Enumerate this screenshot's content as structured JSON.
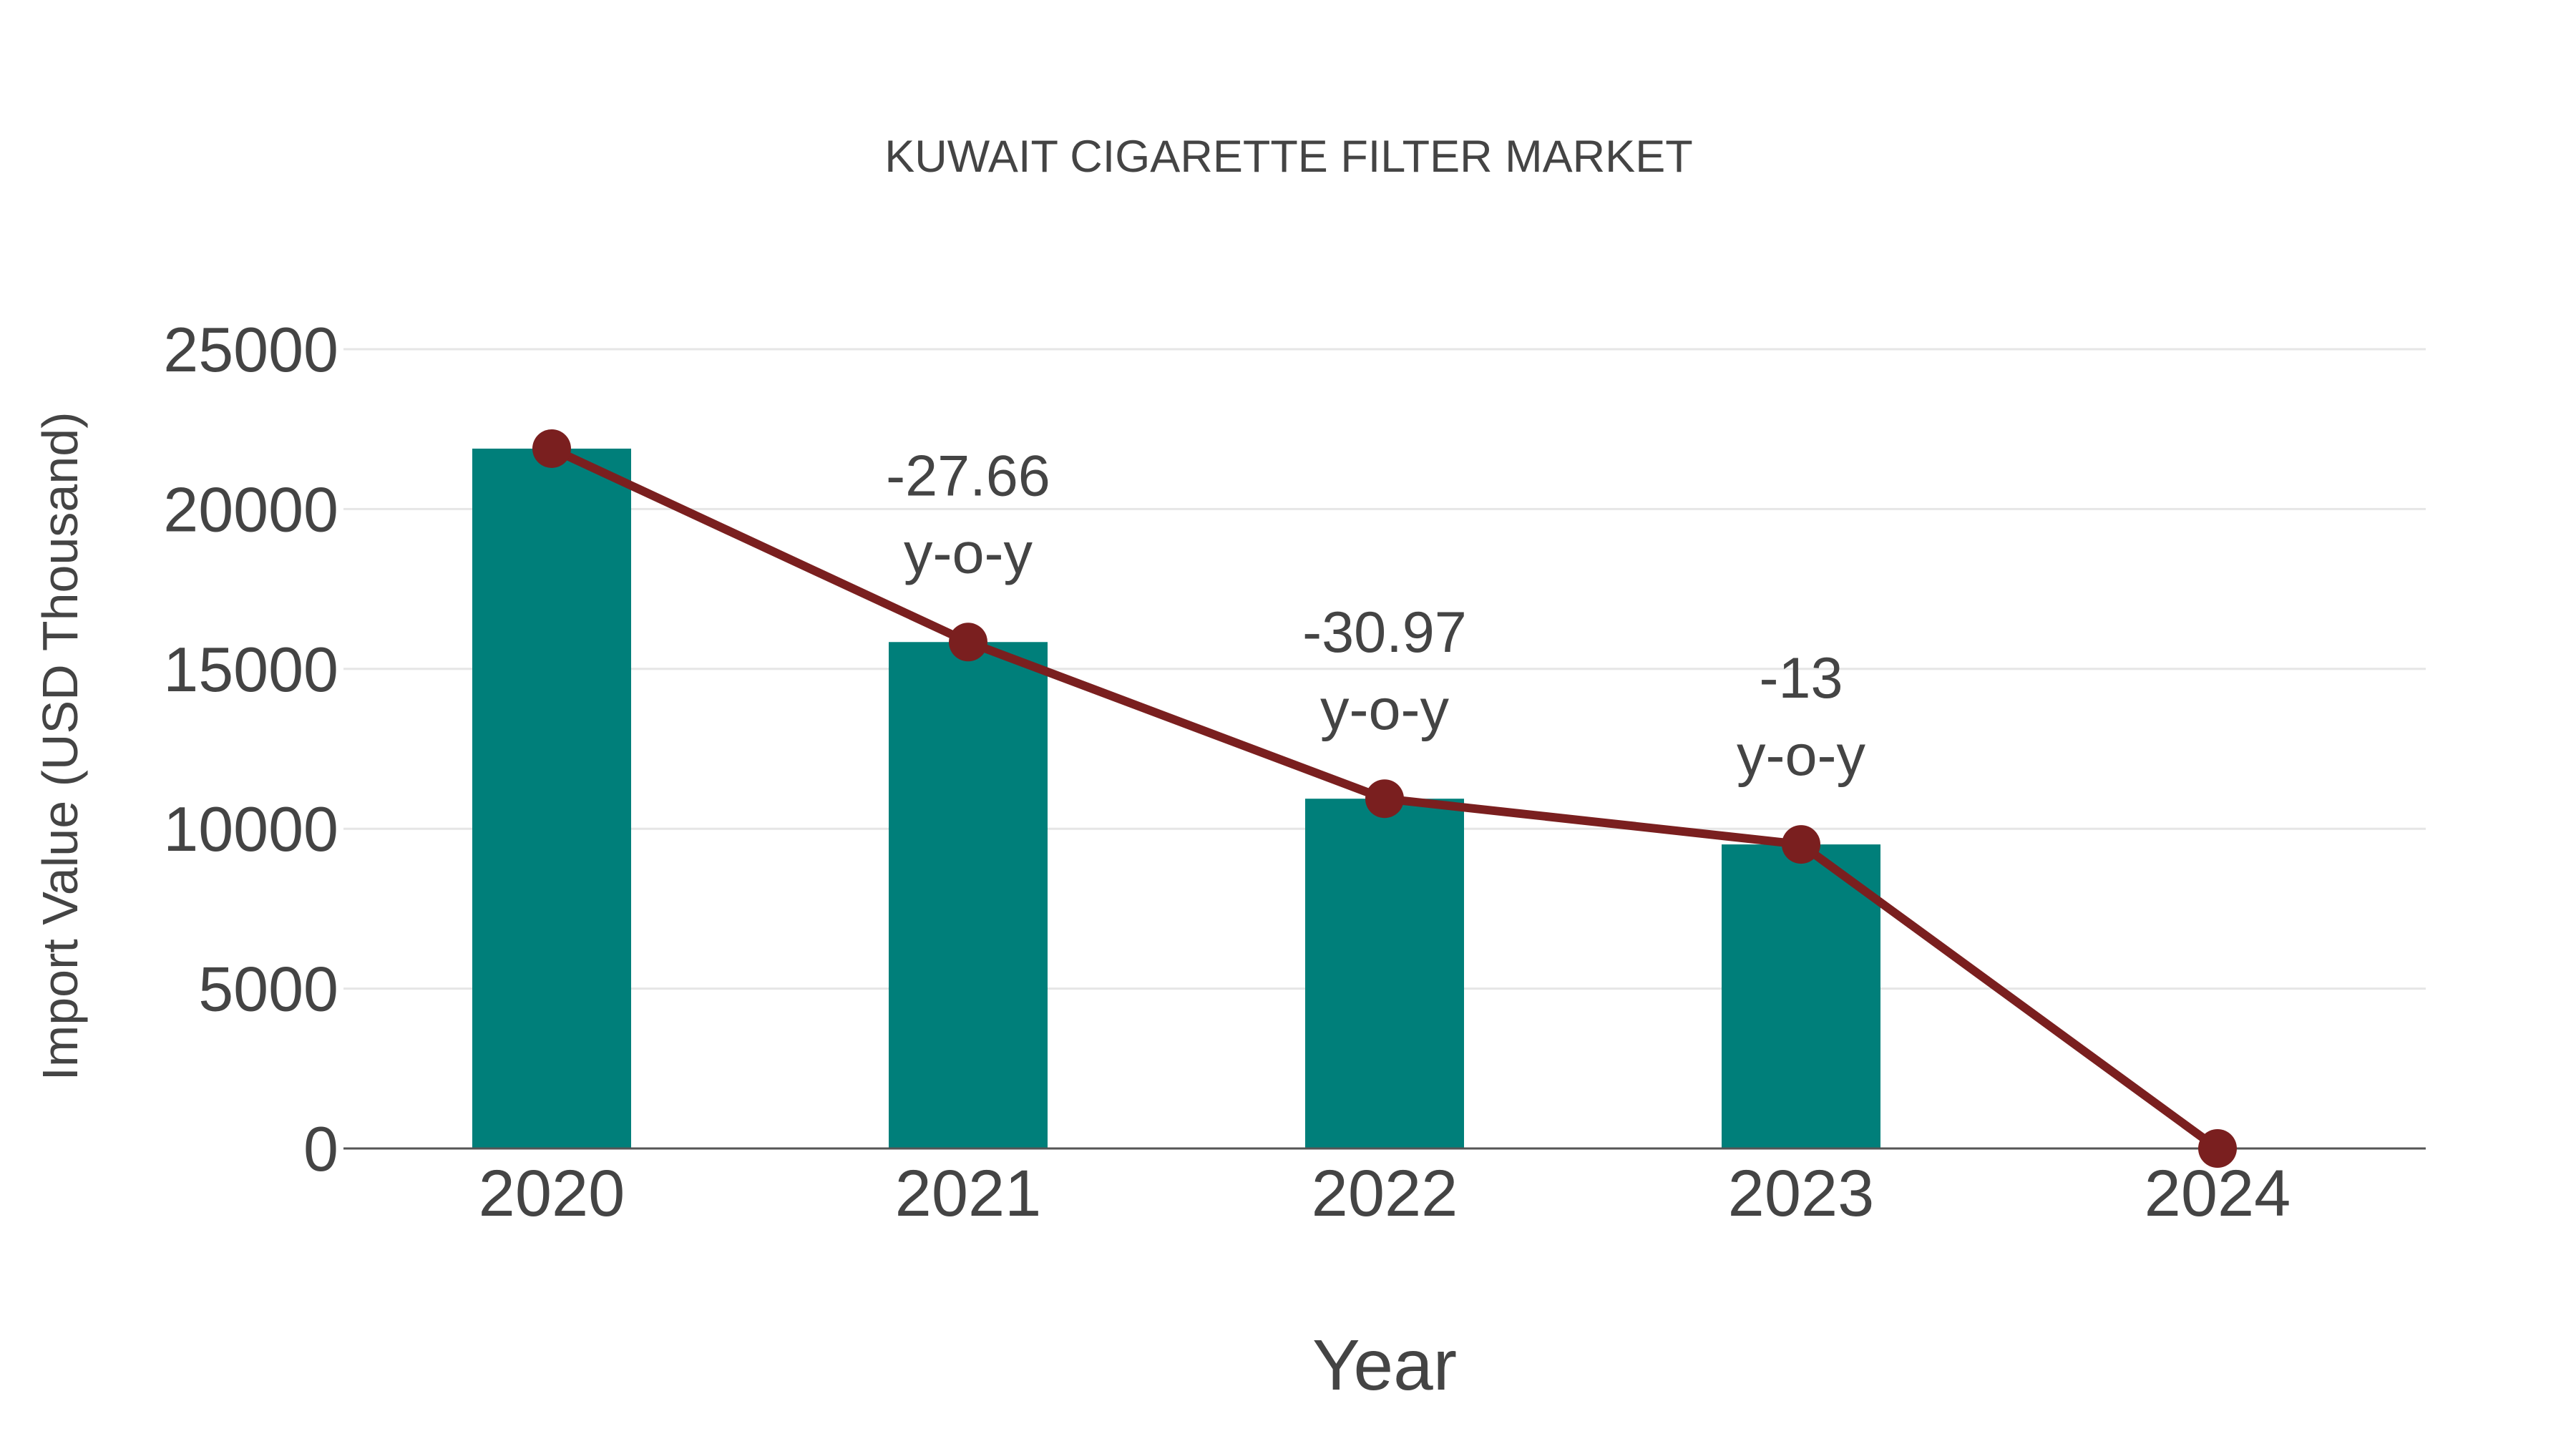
{
  "chart_data": {
    "type": "bar",
    "title": "KUWAIT CIGARETTE FILTER MARKET",
    "xlabel": "Year",
    "ylabel": "Import Value (USD Thousand)",
    "categories": [
      "2020",
      "2021",
      "2022",
      "2023",
      "2024"
    ],
    "series": [
      {
        "name": "Import Value",
        "type": "bar",
        "color": "#007f7a",
        "values": [
          21890,
          15840,
          10940,
          9510,
          0
        ]
      },
      {
        "name": "Trend",
        "type": "line",
        "color": "#7a1f1f",
        "values": [
          21890,
          15840,
          10940,
          9510,
          0
        ]
      }
    ],
    "annotations": [
      {
        "category": "2021",
        "lines": [
          "-27.66",
          "y-o-y"
        ]
      },
      {
        "category": "2022",
        "lines": [
          "-30.97",
          "y-o-y"
        ]
      },
      {
        "category": "2023",
        "lines": [
          "-13",
          "y-o-y"
        ]
      }
    ],
    "ylim": [
      0,
      25000
    ],
    "yticks": [
      "0",
      "5000",
      "10000",
      "15000",
      "20000",
      "25000"
    ],
    "grid": true,
    "legend": "none"
  },
  "colors": {
    "bar": "#007f7a",
    "line": "#7a1f1f",
    "text": "#444444",
    "grid": "#e6e6e6",
    "axis": "#555555"
  }
}
